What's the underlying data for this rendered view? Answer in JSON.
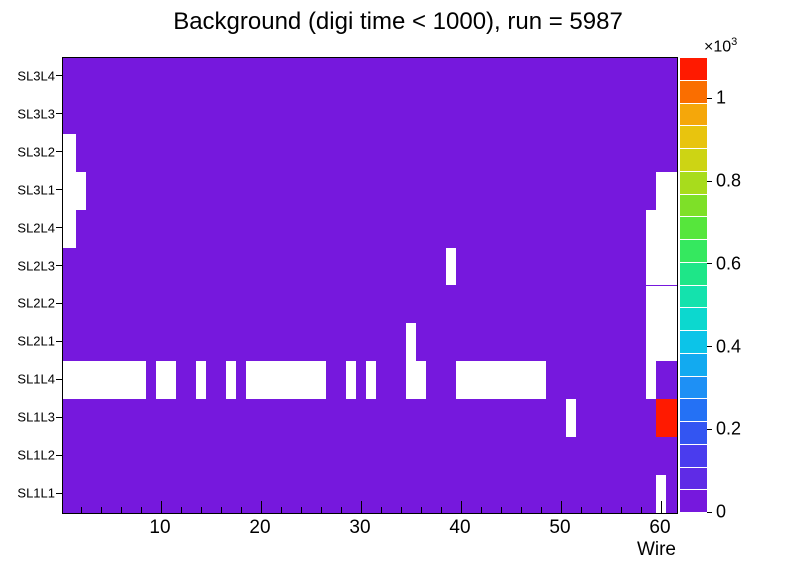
{
  "chart_data": {
    "type": "heatmap",
    "title": "Background (digi time < 1000), run = 5987",
    "xlabel": "Wire",
    "y_labels": [
      "SL3L4",
      "SL3L3",
      "SL3L2",
      "SL3L1",
      "SL2L4",
      "SL2L3",
      "SL2L2",
      "SL2L1",
      "SL1L4",
      "SL1L3",
      "SL1L2",
      "SL1L1"
    ],
    "x_axis": {
      "major_ticks": [
        10,
        20,
        30,
        40,
        50,
        60
      ],
      "minor_tick_step": 2,
      "wire_min": 1,
      "wire_max": 61
    },
    "z_axis": {
      "ticks": [
        {
          "value": 0,
          "label": "0"
        },
        {
          "value": 0.2,
          "label": "0.2"
        },
        {
          "value": 0.4,
          "label": "0.4"
        },
        {
          "value": 0.6,
          "label": "0.6"
        },
        {
          "value": 0.8,
          "label": "0.8"
        },
        {
          "value": 1,
          "label": "1"
        }
      ],
      "scale_base": "×10",
      "scale_exp": "3",
      "axis_max": 1.1
    },
    "base_value": 0.05,
    "empty_color": "#ffffff",
    "empty_cells": {
      "SL3L2": [
        1
      ],
      "SL3L1": [
        1,
        2,
        60,
        61
      ],
      "SL2L4": [
        1,
        59,
        60,
        61
      ],
      "SL2L3": [
        39,
        59,
        60,
        61
      ],
      "SL2L2": [
        59,
        60,
        61
      ],
      "SL2L1": [
        35,
        59,
        60,
        61
      ],
      "SL1L4": [
        1,
        2,
        3,
        4,
        5,
        6,
        7,
        8,
        10,
        11,
        14,
        17,
        19,
        20,
        21,
        22,
        23,
        24,
        25,
        26,
        29,
        31,
        35,
        36,
        40,
        41,
        42,
        43,
        44,
        45,
        46,
        47,
        48,
        59
      ],
      "SL1L3": [
        51
      ],
      "SL1L1": [
        60
      ]
    },
    "hot_cells": [
      {
        "row": "SL1L3",
        "wires": [
          60,
          61
        ],
        "value": 1.05
      }
    ],
    "palette": [
      "#7618dd",
      "#5f2be6",
      "#4a3cee",
      "#3355f2",
      "#2471f5",
      "#1e90f5",
      "#12aaf0",
      "#0cc4e8",
      "#0cd8cf",
      "#14e2ad",
      "#1ee688",
      "#35e85f",
      "#56e63c",
      "#7ee028",
      "#a8dc1c",
      "#cdd414",
      "#e8c40e",
      "#f5a70a",
      "#fa6e00",
      "#ff1a00"
    ]
  }
}
